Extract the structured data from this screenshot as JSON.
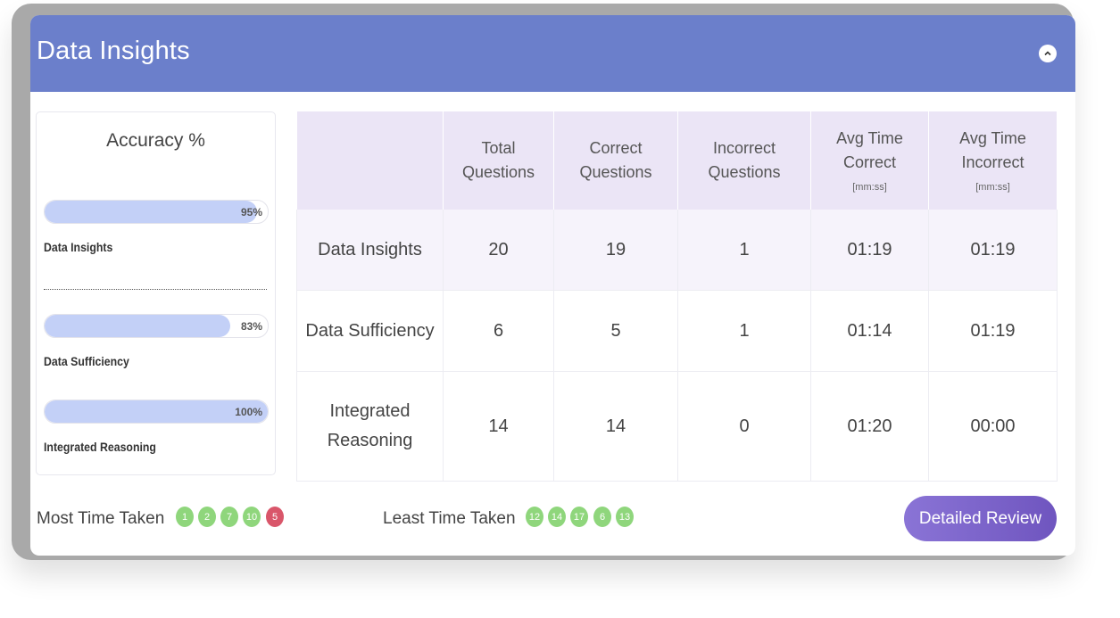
{
  "header": {
    "title": "Data Insights",
    "collapse_icon": "chevron-up-icon"
  },
  "accuracy": {
    "title": "Accuracy %",
    "items": [
      {
        "label": "Data Insights",
        "percent_text": "95%",
        "fraction": 0.95
      },
      {
        "label": "Data Sufficiency",
        "percent_text": "83%",
        "fraction": 0.83
      },
      {
        "label": "Integrated Reasoning",
        "percent_text": "100%",
        "fraction": 1.0
      }
    ],
    "bar_color": "#c3d0f7"
  },
  "table": {
    "headers": [
      {
        "line1": "",
        "line2": "",
        "unit": ""
      },
      {
        "line1": "Total",
        "line2": "Questions",
        "unit": ""
      },
      {
        "line1": "Correct",
        "line2": "Questions",
        "unit": ""
      },
      {
        "line1": "Incorrect",
        "line2": "Questions",
        "unit": ""
      },
      {
        "line1": "Avg Time",
        "line2": "Correct",
        "unit": "[mm:ss]"
      },
      {
        "line1": "Avg Time",
        "line2": "Incorrect",
        "unit": "[mm:ss]"
      }
    ],
    "rows": [
      {
        "name_line1": "Data Insights",
        "name_line2": "",
        "total": "20",
        "correct": "19",
        "incorrect": "1",
        "avg_correct": "01:19",
        "avg_incorrect": "01:19"
      },
      {
        "name_line1": "Data Sufficiency",
        "name_line2": "",
        "total": "6",
        "correct": "5",
        "incorrect": "1",
        "avg_correct": "01:14",
        "avg_incorrect": "01:19"
      },
      {
        "name_line1": "Integrated",
        "name_line2": "Reasoning",
        "total": "14",
        "correct": "14",
        "incorrect": "0",
        "avg_correct": "01:20",
        "avg_incorrect": "00:00"
      }
    ]
  },
  "most_time": {
    "label": "Most Time Taken",
    "badges": [
      {
        "num": "1",
        "color": "#8fd67c"
      },
      {
        "num": "2",
        "color": "#8fd67c"
      },
      {
        "num": "7",
        "color": "#8fd67c"
      },
      {
        "num": "10",
        "color": "#8fd67c"
      },
      {
        "num": "5",
        "color": "#d9566a"
      }
    ]
  },
  "least_time": {
    "label": "Least Time Taken",
    "badges": [
      {
        "num": "12",
        "color": "#8fd67c"
      },
      {
        "num": "14",
        "color": "#8fd67c"
      },
      {
        "num": "17",
        "color": "#8fd67c"
      },
      {
        "num": "6",
        "color": "#8fd67c"
      },
      {
        "num": "13",
        "color": "#8fd67c"
      }
    ]
  },
  "review_button": {
    "label": "Detailed Review"
  }
}
